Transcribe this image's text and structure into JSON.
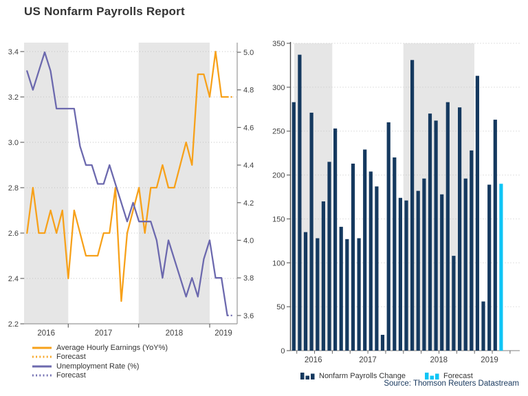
{
  "title": "US Nonfarm Payrolls Report",
  "source": "Source: Thomson Reuters Datastream",
  "colors": {
    "earnings_orange": "#F7A11A",
    "unemployment_purple": "#6C69AE",
    "payrolls_navy": "#15395F",
    "forecast_cyan": "#0FC5F5",
    "shaded_band": "#E6E6E6",
    "gridline": "#C3C3C3",
    "axis_line": "#999999",
    "tick_text": "#404040",
    "title_text": "#333333",
    "source_text": "#17375D"
  },
  "chart_data": [
    {
      "type": "line",
      "title": "",
      "months": [
        "Jun 2016",
        "Jul 2016",
        "Aug 2016",
        "Sep 2016",
        "Oct 2016",
        "Nov 2016",
        "Dec 2016",
        "Jan 2017",
        "Feb 2017",
        "Mar 2017",
        "Apr 2017",
        "May 2017",
        "Jun 2017",
        "Jul 2017",
        "Aug 2017",
        "Sep 2017",
        "Oct 2017",
        "Nov 2017",
        "Dec 2017",
        "Jan 2018",
        "Feb 2018",
        "Mar 2018",
        "Apr 2018",
        "May 2018",
        "Jun 2018",
        "Jul 2018",
        "Aug 2018",
        "Sep 2018",
        "Oct 2018",
        "Nov 2018",
        "Dec 2018",
        "Jan 2019",
        "Feb 2019",
        "Mar 2019",
        "Apr 2019"
      ],
      "forecast_month": "May 2019",
      "series": [
        {
          "name": "Average Hourly Earnings (YoY%)",
          "axis": "left",
          "color": "#F7A11A",
          "values": [
            2.6,
            2.8,
            2.6,
            2.6,
            2.7,
            2.6,
            2.7,
            2.4,
            2.7,
            2.6,
            2.5,
            2.5,
            2.5,
            2.6,
            2.6,
            2.8,
            2.3,
            2.6,
            2.7,
            2.8,
            2.6,
            2.8,
            2.8,
            2.9,
            2.8,
            2.8,
            2.9,
            3.0,
            2.9,
            3.3,
            3.3,
            3.2,
            3.4,
            3.2,
            3.2
          ],
          "forecast": 3.2
        },
        {
          "name": "Unemployment Rate (%)",
          "axis": "right",
          "color": "#6C69AE",
          "values": [
            4.9,
            4.8,
            4.9,
            5.0,
            4.9,
            4.7,
            4.7,
            4.7,
            4.7,
            4.5,
            4.4,
            4.4,
            4.3,
            4.3,
            4.4,
            4.3,
            4.2,
            4.1,
            4.2,
            4.1,
            4.1,
            4.1,
            4.0,
            3.8,
            4.0,
            3.9,
            3.8,
            3.7,
            3.8,
            3.7,
            3.9,
            4.0,
            3.8,
            3.8,
            3.6
          ],
          "forecast": 3.6
        }
      ],
      "left_axis": {
        "ticks": [
          3.4,
          3.2,
          3.0,
          2.8,
          2.6,
          2.4,
          2.2
        ],
        "min": 2.2,
        "max": 3.4
      },
      "right_axis": {
        "ticks": [
          5.0,
          4.8,
          4.6,
          4.4,
          4.2,
          4.0,
          3.8,
          3.6
        ],
        "min": 3.6,
        "max": 5.0
      },
      "xticks": [
        "2016",
        "2017",
        "2018",
        "2019"
      ],
      "shaded_years": [
        "2016",
        "2018"
      ],
      "grid": "dotted-horizontal",
      "legend_position": "below-left",
      "legend": [
        {
          "label": "Average Hourly Earnings (YoY%)",
          "style": "solid",
          "color": "#F7A11A"
        },
        {
          "label": "Forecast",
          "style": "dotted",
          "color": "#F7A11A"
        },
        {
          "label": "Unemployment Rate (%)",
          "style": "solid",
          "color": "#6C69AE"
        },
        {
          "label": "Forecast",
          "style": "dotted",
          "color": "#6C69AE"
        }
      ]
    },
    {
      "type": "bar",
      "title": "",
      "months": [
        "Jun 2016",
        "Jul 2016",
        "Aug 2016",
        "Sep 2016",
        "Oct 2016",
        "Nov 2016",
        "Dec 2016",
        "Jan 2017",
        "Feb 2017",
        "Mar 2017",
        "Apr 2017",
        "May 2017",
        "Jun 2017",
        "Jul 2017",
        "Aug 2017",
        "Sep 2017",
        "Oct 2017",
        "Nov 2017",
        "Dec 2017",
        "Jan 2018",
        "Feb 2018",
        "Mar 2018",
        "Apr 2018",
        "May 2018",
        "Jun 2018",
        "Jul 2018",
        "Aug 2018",
        "Sep 2018",
        "Oct 2018",
        "Nov 2018",
        "Dec 2018",
        "Jan 2019",
        "Feb 2019",
        "Mar 2019",
        "Apr 2019"
      ],
      "values": [
        283,
        337,
        135,
        271,
        128,
        170,
        215,
        253,
        141,
        127,
        213,
        128,
        229,
        204,
        187,
        18,
        260,
        220,
        174,
        171,
        331,
        182,
        196,
        270,
        262,
        178,
        283,
        108,
        277,
        196,
        228,
        313,
        56,
        189,
        263
      ],
      "forecast_month": "May 2019",
      "forecast_value": 190,
      "yticks": [
        0,
        50,
        100,
        150,
        200,
        250,
        300,
        350
      ],
      "ylim": [
        0,
        350
      ],
      "xticks": [
        "2016",
        "2017",
        "2018",
        "2019"
      ],
      "shaded_years": [
        "2016",
        "2018"
      ],
      "grid": "dotted-horizontal",
      "legend_position": "below-center",
      "legend": [
        {
          "label": "Nonfarm Payrolls Change",
          "color": "#15395F"
        },
        {
          "label": "Forecast",
          "color": "#0FC5F5"
        }
      ]
    }
  ]
}
